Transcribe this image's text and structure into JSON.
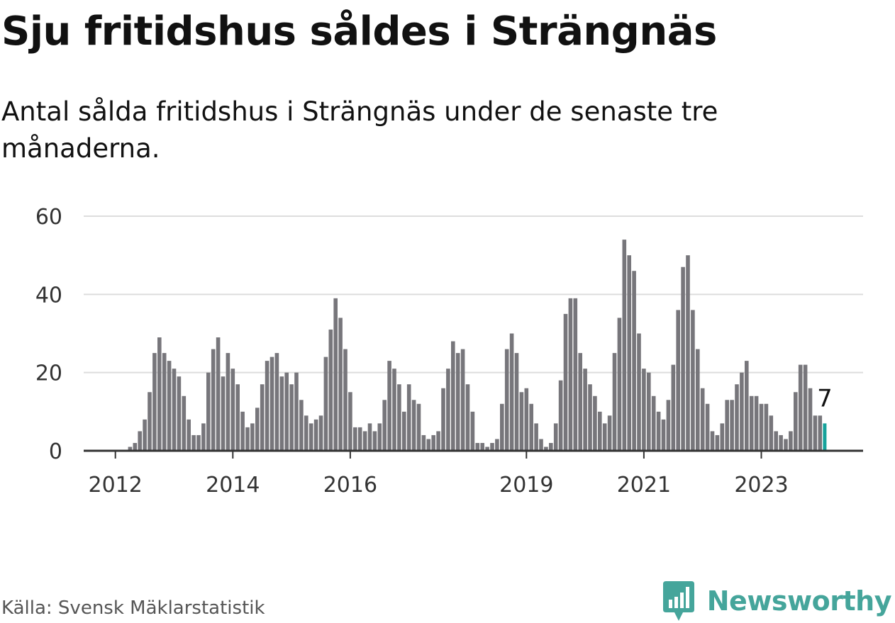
{
  "title": "Sju fritidshus såldes i Strängnäs",
  "subtitle": "Antal sålda fritidshus i Strängnäs under de senaste tre månaderna.",
  "source": "Källa: Svensk Mäklarstatistik",
  "brand": "Newsworthy",
  "colors": {
    "bar": "#77767b",
    "highlight": "#16a29b",
    "grid": "#dddddd",
    "axis": "#333333",
    "brand": "#45a59b"
  },
  "chart_data": {
    "type": "bar",
    "title": "Sju fritidshus såldes i Strängnäs",
    "xlabel": "",
    "ylabel": "",
    "ylim": [
      0,
      60
    ],
    "yticks": [
      0,
      20,
      40,
      60
    ],
    "grid": true,
    "legend": "none",
    "x_tick_labels": [
      "2012",
      "2014",
      "2016",
      "2019",
      "2021",
      "2023"
    ],
    "first_period": "2011-07",
    "last_period": "2023-10",
    "values": [
      0,
      0,
      0,
      0,
      0,
      0,
      0,
      0,
      0,
      1,
      2,
      5,
      8,
      15,
      25,
      29,
      25,
      23,
      21,
      19,
      14,
      8,
      4,
      4,
      7,
      20,
      26,
      29,
      19,
      25,
      21,
      17,
      10,
      6,
      7,
      11,
      17,
      23,
      24,
      25,
      19,
      20,
      17,
      20,
      13,
      9,
      7,
      8,
      9,
      24,
      31,
      39,
      34,
      26,
      15,
      6,
      6,
      5,
      7,
      5,
      7,
      13,
      23,
      21,
      17,
      10,
      17,
      13,
      12,
      4,
      3,
      4,
      5,
      16,
      21,
      28,
      25,
      26,
      17,
      10,
      2,
      2,
      1,
      2,
      3,
      12,
      26,
      30,
      25,
      15,
      16,
      12,
      7,
      3,
      1,
      2,
      7,
      18,
      35,
      39,
      39,
      25,
      21,
      17,
      14,
      10,
      7,
      9,
      25,
      34,
      54,
      50,
      46,
      30,
      21,
      20,
      14,
      10,
      8,
      13,
      22,
      36,
      47,
      50,
      36,
      26,
      16,
      12,
      5,
      4,
      7,
      13,
      13,
      17,
      20,
      23,
      14,
      14,
      12,
      12,
      9,
      5,
      4,
      3,
      5,
      15,
      22,
      22,
      16,
      9,
      9,
      7
    ],
    "highlight": {
      "label": "7",
      "value": 7
    }
  }
}
